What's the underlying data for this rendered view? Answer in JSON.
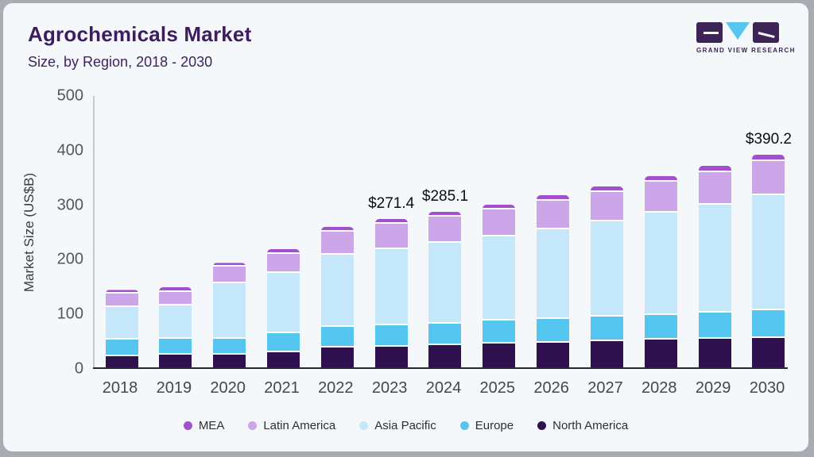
{
  "header": {
    "title": "Agrochemicals Market",
    "subtitle": "Size, by Region, 2018 - 2030"
  },
  "logo": {
    "brand": "GRAND VIEW RESEARCH",
    "block_color": "#3d2356",
    "triangle_color": "#56c5f0"
  },
  "chart_data": {
    "type": "bar",
    "stacked": true,
    "title": "Agrochemicals Market Size, by Region, 2018 - 2030",
    "ylabel": "Market Size (US$B)",
    "xlabel": "",
    "ylim": [
      0,
      500
    ],
    "yticks": [
      "0",
      "100",
      "200",
      "300",
      "400",
      "500"
    ],
    "grid": false,
    "legend_position": "bottom",
    "categories": [
      "2018",
      "2019",
      "2020",
      "2021",
      "2022",
      "2023",
      "2024",
      "2025",
      "2026",
      "2027",
      "2028",
      "2029",
      "2030"
    ],
    "series": [
      {
        "name": "North America",
        "color": "#2f1150",
        "values": [
          20,
          23,
          24,
          27,
          37,
          38.5,
          40.2,
          43.5,
          45,
          48.5,
          51,
          53,
          54.5
        ]
      },
      {
        "name": "Europe",
        "color": "#54c6ef",
        "values": [
          31,
          29,
          29,
          35,
          37,
          38.0,
          39.7,
          42.5,
          43,
          44,
          45,
          47.5,
          49.5
        ]
      },
      {
        "name": "Asia Pacific",
        "color": "#c4e8f9",
        "values": [
          59,
          61.5,
          101,
          111,
          132,
          140.0,
          148.5,
          154,
          165.5,
          175,
          187,
          197,
          211.5
        ]
      },
      {
        "name": "Latin America",
        "color": "#cda5e9",
        "values": [
          25,
          25,
          30,
          35.5,
          42,
          46.0,
          47.3,
          49.5,
          52.5,
          54,
          56.5,
          60.5,
          63.0
        ]
      },
      {
        "name": "MEA",
        "color": "#a44fd0",
        "values": [
          7,
          8,
          7.5,
          7.5,
          9.5,
          8.9,
          9.4,
          9,
          9.5,
          9.5,
          10.5,
          11.5,
          11.7
        ]
      }
    ],
    "totals_annotated": {
      "2023": "$271.4",
      "2024": "$285.1",
      "2030": "$390.2"
    },
    "legend": [
      {
        "label": "MEA",
        "color": "#a44fd0"
      },
      {
        "label": "Latin America",
        "color": "#cda5e9"
      },
      {
        "label": "Asia Pacific",
        "color": "#c4e8f9"
      },
      {
        "label": "Europe",
        "color": "#54c6ef"
      },
      {
        "label": "North America",
        "color": "#2f1150"
      }
    ]
  }
}
